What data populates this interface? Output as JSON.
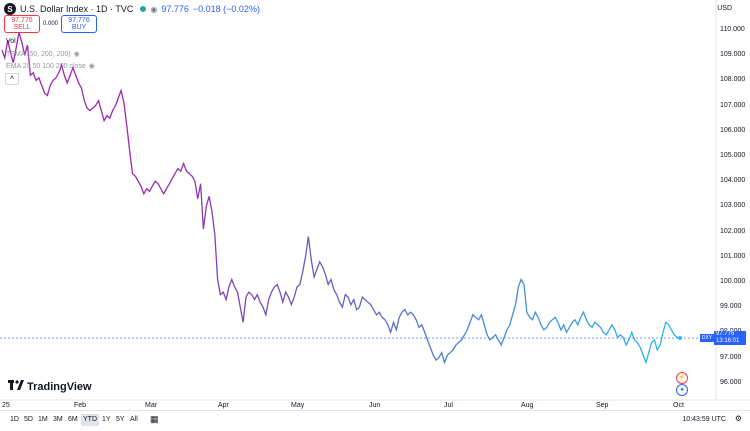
{
  "header": {
    "logo_letter": "S",
    "title": "U.S. Dollar Index · 1D · TVC",
    "last": "97.776",
    "change": "−0.018 (−0.02%)",
    "currency": "USD"
  },
  "trade": {
    "sell_price": "97.776",
    "sell_label": "SELL",
    "spread": "0.000",
    "buy_price": "97.776",
    "buy_label": "BUY"
  },
  "indicators": {
    "vol": "Vol",
    "tema": "TEMA (50, 200, 200)",
    "ema": "EMA 20 50 100 200 close"
  },
  "yaxis": [
    "110.000",
    "109.000",
    "108.000",
    "107.000",
    "106.000",
    "105.000",
    "104.000",
    "103.000",
    "102.000",
    "101.000",
    "100.000",
    "99.000",
    "98.000",
    "97.000",
    "96.000"
  ],
  "xaxis": [
    "25",
    "Feb",
    "Mar",
    "Apr",
    "May",
    "Jun",
    "Jul",
    "Aug",
    "Sep",
    "Oct"
  ],
  "price_tag": {
    "symbol": "DXY",
    "price": "97.776",
    "countdown": "13:16:01"
  },
  "ranges": [
    "1D",
    "5D",
    "1M",
    "3M",
    "6M",
    "YTD",
    "1Y",
    "5Y",
    "All"
  ],
  "active_range": "YTD",
  "clock": "10:43:59 UTC",
  "brand": "TradingView",
  "colors": {
    "line_start": "#9c27b0",
    "line_end": "#29b6f6",
    "accent": "#2962ff"
  },
  "chart_data": {
    "type": "line",
    "title": "U.S. Dollar Index · 1D · TVC",
    "xlabel": "",
    "ylabel": "",
    "ylim": [
      95.6,
      110.6
    ],
    "x_ticks": [
      "25",
      "Feb",
      "Mar",
      "Apr",
      "May",
      "Jun",
      "Jul",
      "Aug",
      "Sep",
      "Oct"
    ],
    "series": [
      {
        "values": [
          109.2,
          108.9,
          109.6,
          109.1,
          108.7,
          109.3,
          109.9,
          109.5,
          109.0,
          109.4,
          108.2,
          108.3,
          108.0,
          108.1,
          107.8,
          107.5,
          107.4,
          107.8,
          108.0,
          108.1,
          108.3,
          108.6,
          108.2,
          107.9,
          108.2,
          108.5,
          108.2,
          107.9,
          107.7,
          107.2,
          106.9,
          106.8,
          106.9,
          107.0,
          107.2,
          106.8,
          106.4,
          106.6,
          106.5,
          106.8,
          107.0,
          107.3,
          107.6,
          107.1,
          106.2,
          105.2,
          104.3,
          104.2,
          104.0,
          103.8,
          103.5,
          103.7,
          103.6,
          103.8,
          104.0,
          103.9,
          103.7,
          103.5,
          103.7,
          103.9,
          104.1,
          104.3,
          104.5,
          104.4,
          104.7,
          104.4,
          104.3,
          104.2,
          104.0,
          103.3,
          103.9,
          102.1,
          103.0,
          103.4,
          102.8,
          101.9,
          100.1,
          99.5,
          99.6,
          99.3,
          99.8,
          100.1,
          99.8,
          99.6,
          99.0,
          98.4,
          99.4,
          99.6,
          99.5,
          99.3,
          99.5,
          99.2,
          99.0,
          98.7,
          99.3,
          99.6,
          99.8,
          99.9,
          99.6,
          99.2,
          99.6,
          99.4,
          99.1,
          99.4,
          99.8,
          99.9,
          100.4,
          101.0,
          101.8,
          100.9,
          100.2,
          100.5,
          100.8,
          100.6,
          100.3,
          99.9,
          100.1,
          99.7,
          99.5,
          99.2,
          99.0,
          99.5,
          99.4,
          99.1,
          99.3,
          98.9,
          99.0,
          99.4,
          99.3,
          99.2,
          99.1,
          98.9,
          98.7,
          98.8,
          98.6,
          98.5,
          98.3,
          98.0,
          98.4,
          98.1,
          98.6,
          98.8,
          98.9,
          98.7,
          98.8,
          98.7,
          98.5,
          98.2,
          98.3,
          98.0,
          97.7,
          97.4,
          97.1,
          96.9,
          97.0,
          97.2,
          96.8,
          97.1,
          97.2,
          97.3,
          97.5,
          97.6,
          97.7,
          97.9,
          98.1,
          98.4,
          98.7,
          98.6,
          98.5,
          98.7,
          98.3,
          97.9,
          97.7,
          97.8,
          97.9,
          97.7,
          97.5,
          97.8,
          98.1,
          98.3,
          98.7,
          99.1,
          99.8,
          100.1,
          99.9,
          98.8,
          98.6,
          98.5,
          98.8,
          98.6,
          98.3,
          98.1,
          98.2,
          98.4,
          98.5,
          98.6,
          98.4,
          98.1,
          98.3,
          98.0,
          98.2,
          98.4,
          98.5,
          98.3,
          98.6,
          98.8,
          98.5,
          98.3,
          98.2,
          98.4,
          98.3,
          98.2,
          98.0,
          97.9,
          98.1,
          98.3,
          98.1,
          97.8,
          97.9,
          97.8,
          97.5,
          97.7,
          98.0,
          97.7,
          97.6,
          97.4,
          97.1,
          96.8,
          97.2,
          97.6,
          97.7,
          97.3,
          97.5,
          98.0,
          98.4,
          98.3,
          98.1,
          97.9,
          97.8,
          97.776
        ]
      }
    ]
  }
}
